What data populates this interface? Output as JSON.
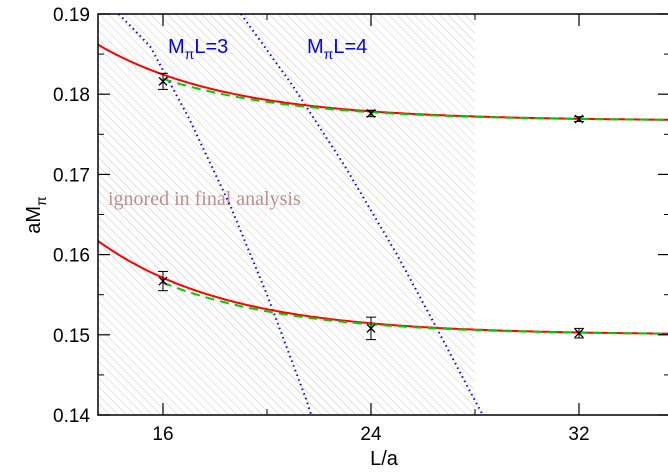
{
  "chart_data": {
    "type": "scatter",
    "title": "",
    "xlabel": "L/a",
    "ylabel": "aM",
    "ylabel_sub": "π",
    "xlim": [
      13.5,
      35.5
    ],
    "ylim": [
      0.14,
      0.19
    ],
    "xticks": [
      16,
      24,
      32
    ],
    "xtick_labels": [
      "16",
      "24",
      "32"
    ],
    "yticks": [
      0.14,
      0.15,
      0.16,
      0.17,
      0.18,
      0.19
    ],
    "ytick_labels": [
      "0.14",
      "0.15",
      "0.16",
      "0.17",
      "0.18",
      "0.19"
    ],
    "grid": false,
    "legend": "none",
    "shaded_region": {
      "x_range": [
        13.5,
        28.0
      ],
      "label": "ignored in final analysis",
      "label_color": "#bc8f8f"
    },
    "series": [
      {
        "points": [
          {
            "x": 16,
            "y": 0.1816,
            "err": 0.001
          },
          {
            "x": 24,
            "y": 0.1776,
            "err": 0.0004
          },
          {
            "x": 32,
            "y": 0.1769,
            "err": 0.0003
          }
        ],
        "fit_red": {
          "c": 0.1767,
          "a": 0.00575,
          "k": 0.2,
          "color": "#ff0000"
        },
        "fit_green": {
          "c": 0.1767,
          "a": 0.00522,
          "k": 0.2,
          "color": "#00cc00"
        }
      },
      {
        "points": [
          {
            "x": 16,
            "y": 0.1567,
            "err": 0.0012
          },
          {
            "x": 24,
            "y": 0.1508,
            "err": 0.0014
          },
          {
            "x": 32,
            "y": 0.1502,
            "err": 0.0006
          }
        ],
        "fit_red": {
          "c": 0.15,
          "a": 0.0071,
          "k": 0.2,
          "color": "#ff0000"
        },
        "fit_green": {
          "c": 0.15,
          "a": 0.0065,
          "k": 0.2,
          "color": "#00cc00"
        }
      }
    ],
    "mpiL_lines": [
      {
        "label_main": "M",
        "label_sub": "π",
        "label_rest": "L=3",
        "points": [
          [
            14.3,
            0.19
          ],
          [
            15.5,
            0.186
          ],
          [
            17.0,
            0.177
          ],
          [
            18.6,
            0.166
          ],
          [
            20.0,
            0.155
          ],
          [
            21.5,
            0.142
          ],
          [
            21.7,
            0.14
          ]
        ],
        "color": "#0000ff"
      },
      {
        "label_main": "M",
        "label_sub": "π",
        "label_rest": "L=4",
        "points": [
          [
            19.0,
            0.19
          ],
          [
            21.0,
            0.181
          ],
          [
            23.0,
            0.171
          ],
          [
            25.0,
            0.16
          ],
          [
            26.5,
            0.151
          ],
          [
            27.8,
            0.143
          ],
          [
            28.3,
            0.14
          ]
        ],
        "color": "#0000ff"
      }
    ]
  }
}
